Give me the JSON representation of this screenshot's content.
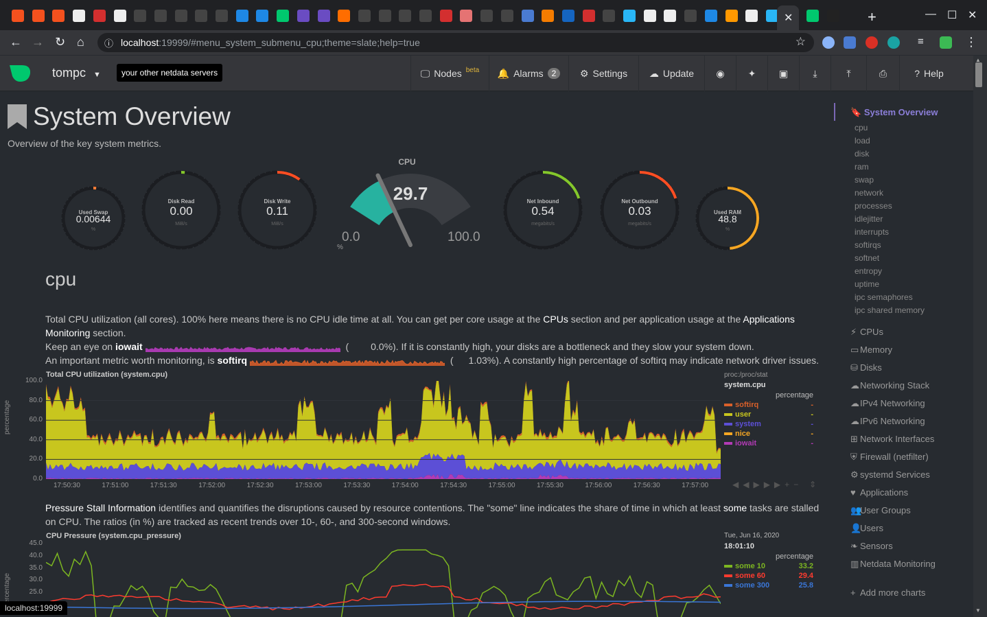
{
  "browser": {
    "url_host": "localhost",
    "url_rest": ":19999/#menu_system_submenu_cpu;theme=slate;help=true"
  },
  "status_bar": "localhost:19999",
  "nav": {
    "hostname": "tompc",
    "servers_btn": "your other netdata servers",
    "nodes": "Nodes",
    "nodes_beta": "beta",
    "alarms": "Alarms",
    "alarms_count": "2",
    "settings": "Settings",
    "update": "Update",
    "help": "Help"
  },
  "page": {
    "title": "System Overview",
    "subtitle": "Overview of the key system metrics."
  },
  "gauges": [
    {
      "label": "Used Swap",
      "value": "0.00644",
      "unit": "%",
      "level": 0.0,
      "color": "#fe7d37"
    },
    {
      "label": "Disk Read",
      "value": "0.00",
      "unit": "MiB/s",
      "level": 0.0,
      "color": "#84c72c"
    },
    {
      "label": "Disk Write",
      "value": "0.11",
      "unit": "MiB/s",
      "level": 0.1,
      "color": "#ff4e23"
    },
    {
      "label": "Net Inbound",
      "value": "0.54",
      "unit": "megabits/s",
      "level": 0.2,
      "color": "#84c72c"
    },
    {
      "label": "Net Outbound",
      "value": "0.03",
      "unit": "megabits/s",
      "level": 0.2,
      "color": "#ff4e23"
    },
    {
      "label": "Used RAM",
      "value": "48.8",
      "unit": "%",
      "level": 0.488,
      "color": "#f5a623"
    }
  ],
  "cpu_gauge": {
    "label": "CPU",
    "value": "29.7",
    "min": "0.0",
    "max": "100.0",
    "unit": "%",
    "level": 0.297
  },
  "section": {
    "title": "cpu",
    "p1a": "Total CPU utilization (all cores). 100% here means there is no CPU idle time at all. You can get per core usage at the ",
    "p1b": "CPUs",
    "p1c": " section and per application usage at the ",
    "p1d": "Applications Monitoring",
    "p1e": " section.",
    "p2a": "Keep an eye on ",
    "p2b": "iowait",
    "p2c": "0.0%). If it is constantly high, your disks are a bottleneck and they slow your system down.",
    "p3a": "An important metric worth monitoring, is ",
    "p3b": "softirq",
    "p3c": "1.03%). A constantly high percentage of softirq may indicate network driver issues.",
    "psi_a": "Pressure Stall Information",
    "psi_b": " identifies and quantifies the disruptions caused by resource contentions. The \"some\" line indicates the share of time in which at least ",
    "psi_c": "some",
    "psi_d": " tasks are stalled on CPU. The ratios (in %) are tracked as recent trends over 10-, 60-, and 300-second windows."
  },
  "chart_cpu": {
    "title": "Total CPU utilization (system.cpu)",
    "ylabel": "percentage",
    "yticks": [
      "100.0",
      "80.0",
      "60.0",
      "40.0",
      "20.0",
      "0.0"
    ],
    "xticks": [
      "17:50:30",
      "17:51:00",
      "17:51:30",
      "17:52:00",
      "17:52:30",
      "17:53:00",
      "17:53:30",
      "17:54:00",
      "17:54:30",
      "17:55:00",
      "17:55:30",
      "17:56:00",
      "17:56:30",
      "17:57:00"
    ],
    "source": "proc:/proc/stat",
    "id": "system.cpu",
    "units": "percentage",
    "legend": [
      {
        "name": "softirq",
        "value": "-",
        "color": "#d9602a"
      },
      {
        "name": "user",
        "value": "-",
        "color": "#c8c61e"
      },
      {
        "name": "system",
        "value": "-",
        "color": "#5c4fd6"
      },
      {
        "name": "nice",
        "value": "-",
        "color": "#f5a623"
      },
      {
        "name": "iowait",
        "value": "-",
        "color": "#b23bb5"
      }
    ]
  },
  "chart_pressure": {
    "title": "CPU Pressure (system.cpu_pressure)",
    "ylabel": "percentage",
    "yticks": [
      "45.0",
      "40.0",
      "35.0",
      "30.0",
      "25.0"
    ],
    "date": "Tue, Jun 16, 2020",
    "time": "18:01:10",
    "units": "percentage",
    "legend": [
      {
        "name": "some 10",
        "value": "33.2",
        "color": "#7cb621"
      },
      {
        "name": "some 60",
        "value": "29.4",
        "color": "#ff3b2f"
      },
      {
        "name": "some 300",
        "value": "25.8",
        "color": "#3a76d6"
      }
    ]
  },
  "sidebar": {
    "active": "System Overview",
    "sub": [
      "cpu",
      "load",
      "disk",
      "ram",
      "swap",
      "network",
      "processes",
      "idlejitter",
      "interrupts",
      "softirqs",
      "softnet",
      "entropy",
      "uptime",
      "ipc semaphores",
      "ipc shared memory"
    ],
    "main": [
      {
        "label": "CPUs",
        "icon": "bolt-icon",
        "glyph": "⚡"
      },
      {
        "label": "Memory",
        "icon": "memory-icon",
        "glyph": "▭"
      },
      {
        "label": "Disks",
        "icon": "disk-icon",
        "glyph": "⛁"
      },
      {
        "label": "Networking Stack",
        "icon": "cloud-icon",
        "glyph": "☁"
      },
      {
        "label": "IPv4 Networking",
        "icon": "cloud-icon",
        "glyph": "☁"
      },
      {
        "label": "IPv6 Networking",
        "icon": "cloud-icon",
        "glyph": "☁"
      },
      {
        "label": "Network Interfaces",
        "icon": "sitemap-icon",
        "glyph": "⊞"
      },
      {
        "label": "Firewall (netfilter)",
        "icon": "shield-icon",
        "glyph": "⛨"
      },
      {
        "label": "systemd Services",
        "icon": "cogs-icon",
        "glyph": "⚙"
      },
      {
        "label": "Applications",
        "icon": "heartbeat-icon",
        "glyph": "♥"
      },
      {
        "label": "User Groups",
        "icon": "users-icon",
        "glyph": "👥"
      },
      {
        "label": "Users",
        "icon": "user-icon",
        "glyph": "👤"
      },
      {
        "label": "Sensors",
        "icon": "leaf-icon",
        "glyph": "❧"
      },
      {
        "label": "Netdata Monitoring",
        "icon": "chart-icon",
        "glyph": "▥"
      }
    ],
    "add": "Add more charts"
  }
}
